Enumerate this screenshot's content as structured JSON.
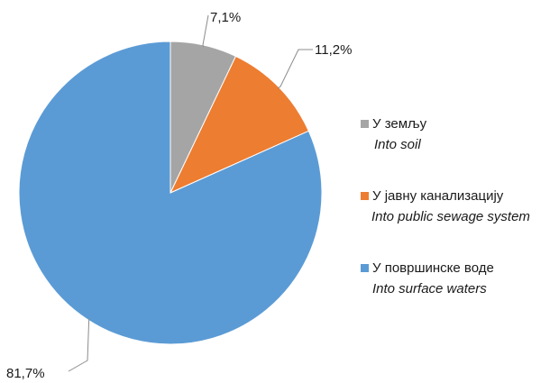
{
  "chart_data": {
    "type": "pie",
    "slices": [
      {
        "label": "У земљу",
        "label_en": "Into soil",
        "value": 7.1,
        "value_label": "7,1%",
        "color": "#a5a5a5"
      },
      {
        "label": "У јавну канализацију",
        "label_en": "Into public sewage system",
        "value": 11.2,
        "value_label": "11,2%",
        "color": "#ed7d31"
      },
      {
        "label": "У површинске воде",
        "label_en": "Into surface waters",
        "value": 81.7,
        "value_label": "81,7%",
        "color": "#5b9bd5"
      }
    ],
    "start_angle_deg": 0,
    "direction": "clockwise",
    "legend_position": "right",
    "data_labels": "outside-with-leader-lines"
  }
}
